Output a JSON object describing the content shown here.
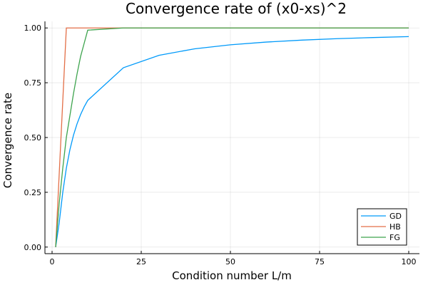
{
  "chart_data": {
    "type": "line",
    "title": "Convergence rate of (x0-xs)^2",
    "xlabel": "Condition number L/m",
    "ylabel": "Convergence rate",
    "xlim": [
      -2,
      103
    ],
    "ylim": [
      -0.03,
      1.03
    ],
    "xticks": [
      0,
      25,
      50,
      75,
      100
    ],
    "xtick_labels": [
      "0",
      "25",
      "50",
      "75",
      "100"
    ],
    "yticks": [
      0,
      0.25,
      0.5,
      0.75,
      1.0
    ],
    "ytick_labels": [
      "0.00",
      "0.25",
      "0.50",
      "0.75",
      "1.00"
    ],
    "grid": true,
    "legend_position": "bottom-right",
    "series": [
      {
        "name": "GD",
        "color": "#009AFA",
        "x": [
          1,
          2,
          3,
          4,
          5,
          6,
          7,
          8,
          9,
          10,
          20,
          30,
          40,
          50,
          60,
          70,
          80,
          90,
          100
        ],
        "y": [
          0.0,
          0.1111,
          0.25,
          0.36,
          0.4444,
          0.5102,
          0.5625,
          0.6049,
          0.64,
          0.6694,
          0.8186,
          0.8751,
          0.9049,
          0.9231,
          0.9355,
          0.9444,
          0.9511,
          0.9563,
          0.9604
        ]
      },
      {
        "name": "HB",
        "color": "#E36F47",
        "x": [
          1,
          4,
          10,
          20,
          30,
          40,
          50,
          60,
          70,
          80,
          90,
          100
        ],
        "y": [
          0.0,
          1.0,
          1.0,
          1.0,
          1.0,
          1.0,
          1.0,
          1.0,
          1.0,
          1.0,
          1.0,
          1.0
        ]
      },
      {
        "name": "FG",
        "color": "#3EA44E",
        "x": [
          1,
          2,
          3,
          4,
          5,
          6,
          7,
          8,
          9,
          10,
          20,
          30,
          40,
          50,
          60,
          70,
          80,
          90,
          100
        ],
        "y": [
          0.0,
          0.2,
          0.36,
          0.5,
          0.6,
          0.7,
          0.79,
          0.87,
          0.93,
          0.99,
          1.0,
          1.0,
          1.0,
          1.0,
          1.0,
          1.0,
          1.0,
          1.0,
          1.0
        ]
      }
    ]
  }
}
